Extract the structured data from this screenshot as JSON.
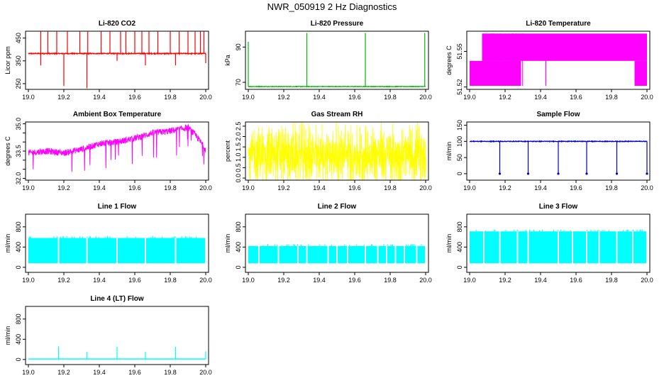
{
  "figure_title": "NWR_050919 2 Hz Diagnostics",
  "chart_data": [
    {
      "type": "line",
      "title": "Li-820 CO2",
      "xlabel": "",
      "ylabel": "Licor ppm",
      "color": "#ff0000",
      "xlim": [
        19.0,
        20.0
      ],
      "ylim": [
        225,
        480
      ],
      "xticks": [
        19.0,
        19.2,
        19.4,
        19.6,
        19.8,
        20.0
      ],
      "xtick_labels": [
        "19.0",
        "19.2",
        "19.4",
        "19.6",
        "19.8",
        "20.0"
      ],
      "yticks": [
        250,
        350,
        450
      ],
      "ytick_labels": [
        "250",
        "350",
        "450"
      ],
      "series": [
        {
          "name": "CO2",
          "baseline": 382,
          "noise": 4,
          "spike_values": [
            478,
            478,
            478,
            478,
            478,
            478,
            478,
            478,
            478,
            478,
            478,
            478,
            478,
            478,
            478,
            478,
            478,
            478,
            478,
            478
          ],
          "dip_values": [
            330,
            240,
            230,
            350,
            330,
            330,
            340
          ]
        }
      ]
    },
    {
      "type": "line",
      "title": "Li-820 Pressure",
      "xlabel": "",
      "ylabel": "kPa",
      "color": "#00bb00",
      "xlim": [
        19.0,
        20.0
      ],
      "ylim": [
        66,
        99
      ],
      "xticks": [
        19.0,
        19.2,
        19.4,
        19.6,
        19.8,
        20.0
      ],
      "xtick_labels": [
        "19.0",
        "19.2",
        "19.4",
        "19.6",
        "19.8",
        "20.0"
      ],
      "yticks": [
        70,
        90
      ],
      "ytick_labels": [
        "70",
        "90"
      ],
      "series": [
        {
          "name": "Pressure",
          "baseline": 67.6,
          "noise": 0.3,
          "spike_values": [
            93,
            98,
            98,
            98
          ]
        }
      ]
    },
    {
      "type": "line",
      "title": "Li-820 Temperature",
      "xlabel": "",
      "ylabel": "degrees C",
      "color": "#ff00ff",
      "xlim": [
        19.0,
        20.0
      ],
      "ylim": [
        51.518,
        51.567
      ],
      "xticks": [
        19.0,
        19.2,
        19.4,
        19.6,
        19.8,
        20.0
      ],
      "xtick_labels": [
        "19.0",
        "19.2",
        "19.4",
        "19.6",
        "19.8",
        "20.0"
      ],
      "yticks": [
        51.52,
        51.55
      ],
      "ytick_labels": [
        "51.52",
        "51.55"
      ],
      "series": [
        {
          "name": "Temperature",
          "levels": [
            51.521,
            51.542,
            51.565
          ]
        }
      ]
    },
    {
      "type": "line",
      "title": "Ambient Box Temperature",
      "xlabel": "",
      "ylabel": "degrees C",
      "color": "#ff00ff",
      "xlim": [
        19.0,
        20.0
      ],
      "ylim": [
        31.9,
        35.1
      ],
      "xticks": [
        19.0,
        19.2,
        19.4,
        19.6,
        19.8,
        20.0
      ],
      "xtick_labels": [
        "19.0",
        "19.2",
        "19.4",
        "19.6",
        "19.8",
        "20.0"
      ],
      "yticks": [
        32.0,
        33.5,
        35.0
      ],
      "ytick_labels": [
        "32.0",
        "33.5",
        "35.0"
      ],
      "extra_yticks": [
        32.0,
        32.5,
        33.0,
        33.5,
        34.0,
        34.5,
        35.0
      ],
      "series": [
        {
          "name": "AmbientT",
          "trend": [
            [
              19.0,
              33.4
            ],
            [
              19.1,
              33.5
            ],
            [
              19.2,
              33.4
            ],
            [
              19.3,
              33.6
            ],
            [
              19.4,
              33.9
            ],
            [
              19.5,
              34.0
            ],
            [
              19.6,
              34.2
            ],
            [
              19.7,
              34.5
            ],
            [
              19.8,
              34.6
            ],
            [
              19.9,
              34.8
            ],
            [
              19.95,
              34.3
            ],
            [
              20.0,
              33.6
            ]
          ],
          "noise": 0.35
        }
      ]
    },
    {
      "type": "line",
      "title": "Gas Stream RH",
      "xlabel": "",
      "ylabel": "percent",
      "color": "#ffff00",
      "xlim": [
        19.0,
        20.0
      ],
      "ylim": [
        -0.1,
        2.7
      ],
      "xticks": [
        19.0,
        19.2,
        19.4,
        19.6,
        19.8,
        20.0
      ],
      "xtick_labels": [
        "19.0",
        "19.2",
        "19.4",
        "19.6",
        "19.8",
        "20.0"
      ],
      "yticks": [
        0.0,
        0.5,
        1.0,
        1.5,
        2.0,
        2.5
      ],
      "ytick_labels": [
        "0.0",
        "0.5",
        "1.0",
        "1.5",
        "2.0",
        "2.5"
      ],
      "series": [
        {
          "name": "RH",
          "baseline": 1.1,
          "noise": 1.4
        }
      ]
    },
    {
      "type": "line",
      "title": "Sample Flow",
      "xlabel": "",
      "ylabel": "ml/min",
      "color": "#0000cc",
      "xlim": [
        19.0,
        20.0
      ],
      "ylim": [
        -20,
        160
      ],
      "xticks": [
        19.0,
        19.2,
        19.4,
        19.6,
        19.8,
        20.0
      ],
      "xtick_labels": [
        "19.0",
        "19.2",
        "19.4",
        "19.6",
        "19.8",
        "20.0"
      ],
      "yticks": [
        0,
        50,
        100,
        150
      ],
      "ytick_labels": [
        "0",
        "50",
        "100",
        "150"
      ],
      "series": [
        {
          "name": "SampleFlow",
          "baseline": 100,
          "noise": 2,
          "dips": [
            19.17,
            19.33,
            19.5,
            19.66,
            19.83,
            20.0
          ]
        }
      ]
    },
    {
      "type": "line",
      "title": "Line 1 Flow",
      "xlabel": "",
      "ylabel": "ml/min",
      "color": "#00ffff",
      "xlim": [
        19.0,
        20.0
      ],
      "ylim": [
        -100,
        1050
      ],
      "xticks": [
        19.0,
        19.2,
        19.4,
        19.6,
        19.8,
        20.0
      ],
      "xtick_labels": [
        "19.0",
        "19.2",
        "19.4",
        "19.6",
        "19.8",
        "20.0"
      ],
      "yticks": [
        0,
        400,
        800
      ],
      "ytick_labels": [
        "0",
        "400",
        "800"
      ],
      "series": [
        {
          "name": "Line1",
          "low": 80,
          "high": 580,
          "gaps": [
            19.17,
            19.33,
            19.5,
            19.66,
            19.83
          ]
        }
      ]
    },
    {
      "type": "line",
      "title": "Line 2 Flow",
      "xlabel": "",
      "ylabel": "ml/min",
      "color": "#00ffff",
      "xlim": [
        19.0,
        20.0
      ],
      "ylim": [
        -100,
        1050
      ],
      "xticks": [
        19.0,
        19.2,
        19.4,
        19.6,
        19.8,
        20.0
      ],
      "xtick_labels": [
        "19.0",
        "19.2",
        "19.4",
        "19.6",
        "19.8",
        "20.0"
      ],
      "yticks": [
        0,
        400,
        800
      ],
      "ytick_labels": [
        "0",
        "400",
        "800"
      ],
      "series": [
        {
          "name": "Line2",
          "low": 80,
          "high": 420,
          "gaps": [
            19.06,
            19.17,
            19.28,
            19.33,
            19.45,
            19.5,
            19.56,
            19.66,
            19.73,
            19.78,
            19.83,
            19.88,
            19.95
          ]
        }
      ]
    },
    {
      "type": "line",
      "title": "Line 3 Flow",
      "xlabel": "",
      "ylabel": "ml/min",
      "color": "#00ffff",
      "xlim": [
        19.0,
        20.0
      ],
      "ylim": [
        -100,
        1050
      ],
      "xticks": [
        19.0,
        19.2,
        19.4,
        19.6,
        19.8,
        20.0
      ],
      "xtick_labels": [
        "19.0",
        "19.2",
        "19.4",
        "19.6",
        "19.8",
        "20.0"
      ],
      "yticks": [
        0,
        400,
        800
      ],
      "ytick_labels": [
        "0",
        "400",
        "800"
      ],
      "series": [
        {
          "name": "Line3",
          "low": 80,
          "high": 710,
          "gaps": [
            19.08,
            19.17,
            19.27,
            19.33,
            19.5,
            19.58,
            19.66,
            19.73,
            19.83,
            19.92
          ]
        }
      ]
    },
    {
      "type": "line",
      "title": "Line 4 (LT) Flow",
      "xlabel": "",
      "ylabel": "ml/min",
      "color": "#00ffff",
      "xlim": [
        19.0,
        20.0
      ],
      "ylim": [
        -100,
        1050
      ],
      "xticks": [
        19.0,
        19.2,
        19.4,
        19.6,
        19.8,
        20.0
      ],
      "xtick_labels": [
        "19.0",
        "19.2",
        "19.4",
        "19.6",
        "19.8",
        "20.0"
      ],
      "yticks": [
        0,
        400,
        800
      ],
      "ytick_labels": [
        "0",
        "400",
        "800"
      ],
      "series": [
        {
          "name": "Line4",
          "baseline": 10,
          "spikes": [
            [
              19.17,
              260
            ],
            [
              19.33,
              150
            ],
            [
              19.5,
              250
            ],
            [
              19.66,
              150
            ],
            [
              19.83,
              250
            ],
            [
              20.0,
              160
            ]
          ]
        }
      ]
    }
  ]
}
